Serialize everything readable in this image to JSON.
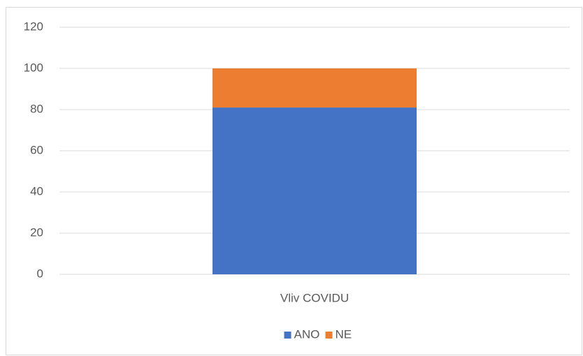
{
  "chart_data": {
    "type": "bar",
    "stacked": true,
    "categories": [
      "Vliv COVIDU"
    ],
    "series": [
      {
        "name": "ANO",
        "color": "#4472c4",
        "values": [
          81
        ]
      },
      {
        "name": "NE",
        "color": "#ed7d31",
        "values": [
          19
        ]
      }
    ],
    "ylim": [
      0,
      120
    ],
    "yticks": [
      0,
      20,
      40,
      60,
      80,
      100,
      120
    ],
    "grid": true,
    "legend": "bottom"
  }
}
